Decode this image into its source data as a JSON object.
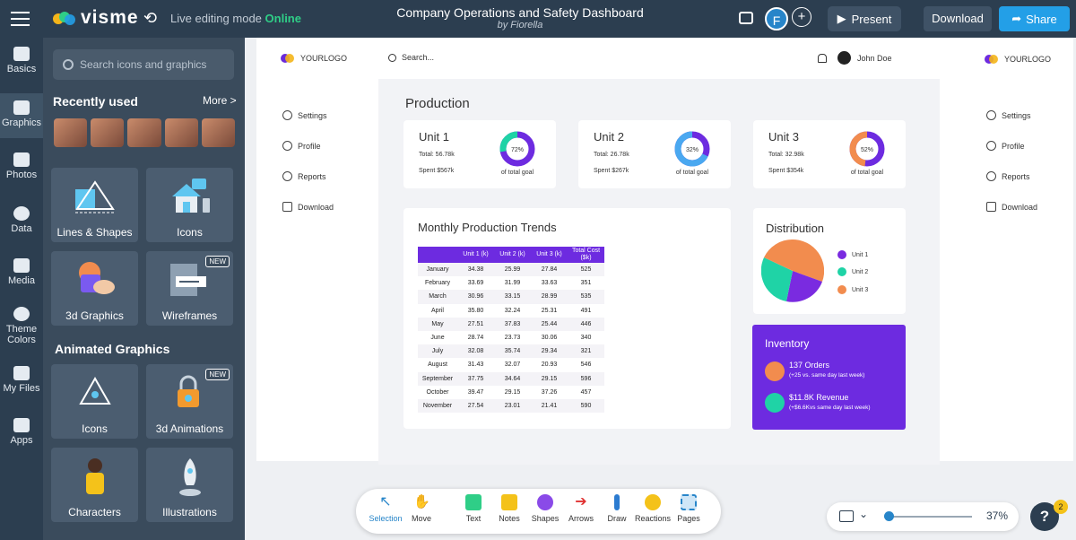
{
  "topbar": {
    "brand": "visme",
    "mode_label": "Live editing mode",
    "mode_status": "Online",
    "doc_title": "Company Operations and Safety Dashboard",
    "doc_author": "by Fiorella",
    "avatar_letter": "F",
    "present": "Present",
    "download": "Download",
    "share": "Share"
  },
  "iconbar": [
    {
      "label": "Basics"
    },
    {
      "label": "Graphics"
    },
    {
      "label": "Photos"
    },
    {
      "label": "Data"
    },
    {
      "label": "Media"
    },
    {
      "label": "Theme Colors"
    },
    {
      "label": "My Files"
    },
    {
      "label": "Apps"
    }
  ],
  "panel": {
    "search_placeholder": "Search icons and graphics",
    "recently_used": "Recently used",
    "more": "More >",
    "tiles": [
      {
        "label": "Lines & Shapes"
      },
      {
        "label": "Icons"
      },
      {
        "label": "3d Graphics"
      },
      {
        "label": "Wireframes",
        "badge": "NEW"
      }
    ],
    "animated_title": "Animated Graphics",
    "anim_tiles": [
      {
        "label": "Icons"
      },
      {
        "label": "3d Animations",
        "badge": "NEW"
      },
      {
        "label": "Characters"
      },
      {
        "label": "Illustrations"
      }
    ]
  },
  "slide": {
    "logo": "YOURLOGO",
    "search": "Search...",
    "user": "John Doe",
    "nav": [
      "Settings",
      "Profile",
      "Reports",
      "Download"
    ],
    "production_title": "Production",
    "units": [
      {
        "name": "Unit 1",
        "total": "Total: 56.78k",
        "spent": "Spent $567k",
        "pct": "72%",
        "pct_value": 72,
        "goal": "of total goal",
        "color": "#1fd3a6"
      },
      {
        "name": "Unit 2",
        "total": "Total: 26.78k",
        "spent": "Spent $267k",
        "pct": "32%",
        "pct_value": 32,
        "goal": "of total goal",
        "color": "#4aa8f0"
      },
      {
        "name": "Unit 3",
        "total": "Total: 32.98k",
        "spent": "Spent $354k",
        "pct": "52%",
        "pct_value": 52,
        "goal": "of total goal",
        "color": "#f28c4e"
      }
    ],
    "trends_title": "Monthly Production Trends",
    "table": {
      "headers": [
        "",
        "Unit 1 (k)",
        "Unit 2 (k)",
        "Unit 3 (k)",
        "Total Cost ($k)"
      ],
      "rows": [
        [
          "January",
          "34.38",
          "25.99",
          "27.84",
          "525"
        ],
        [
          "February",
          "33.69",
          "31.99",
          "33.63",
          "351"
        ],
        [
          "March",
          "30.96",
          "33.15",
          "28.99",
          "535"
        ],
        [
          "April",
          "35.80",
          "32.24",
          "25.31",
          "491"
        ],
        [
          "May",
          "27.51",
          "37.83",
          "25.44",
          "446"
        ],
        [
          "June",
          "28.74",
          "23.73",
          "30.06",
          "340"
        ],
        [
          "July",
          "32.08",
          "35.74",
          "29.34",
          "321"
        ],
        [
          "August",
          "31.43",
          "32.07",
          "20.93",
          "546"
        ],
        [
          "September",
          "37.75",
          "34.64",
          "29.15",
          "596"
        ],
        [
          "October",
          "39.47",
          "29.15",
          "37.26",
          "457"
        ],
        [
          "November",
          "27.54",
          "23.01",
          "21.41",
          "590"
        ]
      ]
    },
    "distribution": {
      "title": "Distribution",
      "legend": [
        {
          "name": "Unit 1",
          "color": "#7a2be0"
        },
        {
          "name": "Unit 2",
          "color": "#1fd3a6"
        },
        {
          "name": "Unit 3",
          "color": "#f28c4e"
        }
      ]
    },
    "inventory": {
      "title": "Inventory",
      "orders": "137 Orders",
      "orders_sub": "(+25 vs. same day last week)",
      "revenue": "$11.8K Revenue",
      "revenue_sub": "(+$6.6Kvs same day last week)"
    }
  },
  "right_panel": {
    "logo": "YOURLOGO",
    "nav": [
      "Settings",
      "Profile",
      "Reports",
      "Download"
    ]
  },
  "toolbar": [
    {
      "label": "Selection"
    },
    {
      "label": "Move"
    },
    {
      "label": "Text"
    },
    {
      "label": "Notes"
    },
    {
      "label": "Shapes"
    },
    {
      "label": "Arrows"
    },
    {
      "label": "Draw"
    },
    {
      "label": "Reactions"
    },
    {
      "label": "Pages"
    }
  ],
  "zoom": {
    "value": "37%",
    "slider_fraction": 0.05
  },
  "help": {
    "label": "?",
    "badge": "2"
  }
}
